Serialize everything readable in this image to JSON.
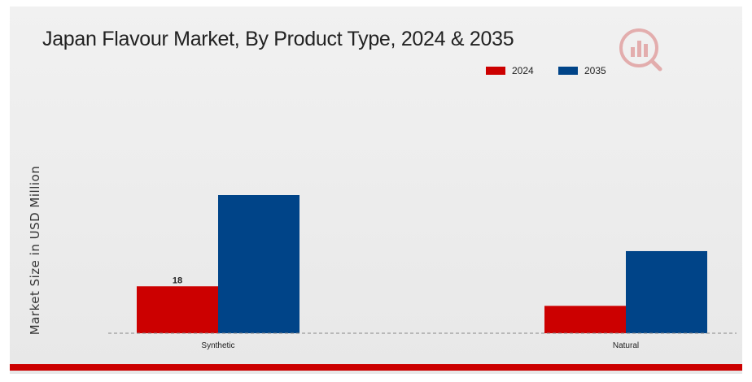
{
  "chart_data": {
    "type": "bar",
    "title": "Japan Flavour Market, By Product Type, 2024 & 2035",
    "xlabel": "",
    "ylabel": "Market Size in USD Million",
    "categories": [
      "Synthetic",
      "Natural"
    ],
    "series": [
      {
        "name": "2024",
        "values": [
          18,
          10.5
        ],
        "color": "#cc0000"
      },
      {
        "name": "2035",
        "values": [
          53,
          31.5
        ],
        "color": "#004488"
      }
    ],
    "data_labels": [
      {
        "series": "2024",
        "category": "Synthetic",
        "text": "18"
      }
    ],
    "ylim": [
      0,
      62
    ],
    "legend_position": "top-right",
    "grid": false,
    "baseline": "dashed"
  },
  "logo": {
    "icon": "market-research-logo-icon"
  }
}
